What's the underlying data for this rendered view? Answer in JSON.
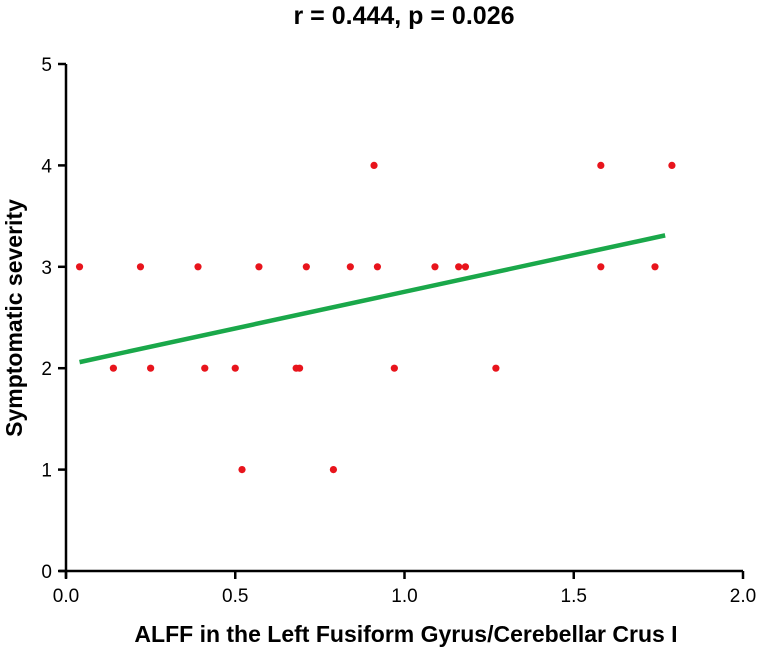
{
  "chart_data": {
    "type": "scatter",
    "title": "r = 0.444, p = 0.026",
    "xlabel": "ALFF in the Left Fusiform Gyrus/Cerebellar Crus I",
    "ylabel": "Symptomatic severity",
    "xlim": [
      0,
      2.0
    ],
    "ylim": [
      0,
      5
    ],
    "x_ticks": [
      "0.0",
      "0.5",
      "1.0",
      "1.5",
      "2.0"
    ],
    "y_ticks": [
      "0",
      "1",
      "2",
      "3",
      "4",
      "5"
    ],
    "grid": false,
    "legend": "none",
    "series": [
      {
        "color": "#e8141c",
        "points": [
          {
            "x": 0.04,
            "y": 3
          },
          {
            "x": 0.14,
            "y": 2
          },
          {
            "x": 0.22,
            "y": 3
          },
          {
            "x": 0.25,
            "y": 2
          },
          {
            "x": 0.39,
            "y": 3
          },
          {
            "x": 0.41,
            "y": 2
          },
          {
            "x": 0.5,
            "y": 2
          },
          {
            "x": 0.52,
            "y": 1
          },
          {
            "x": 0.57,
            "y": 3
          },
          {
            "x": 0.68,
            "y": 2
          },
          {
            "x": 0.69,
            "y": 2
          },
          {
            "x": 0.71,
            "y": 3
          },
          {
            "x": 0.79,
            "y": 1
          },
          {
            "x": 0.84,
            "y": 3
          },
          {
            "x": 0.91,
            "y": 4
          },
          {
            "x": 0.92,
            "y": 3
          },
          {
            "x": 0.97,
            "y": 2
          },
          {
            "x": 1.09,
            "y": 3
          },
          {
            "x": 1.16,
            "y": 3
          },
          {
            "x": 1.18,
            "y": 3
          },
          {
            "x": 1.27,
            "y": 2
          },
          {
            "x": 1.58,
            "y": 4
          },
          {
            "x": 1.58,
            "y": 3
          },
          {
            "x": 1.74,
            "y": 3
          },
          {
            "x": 1.79,
            "y": 4
          }
        ]
      }
    ],
    "fit_line": {
      "color": "#1aa84a",
      "x": [
        0.04,
        1.77
      ],
      "y": [
        2.06,
        3.31
      ]
    }
  }
}
